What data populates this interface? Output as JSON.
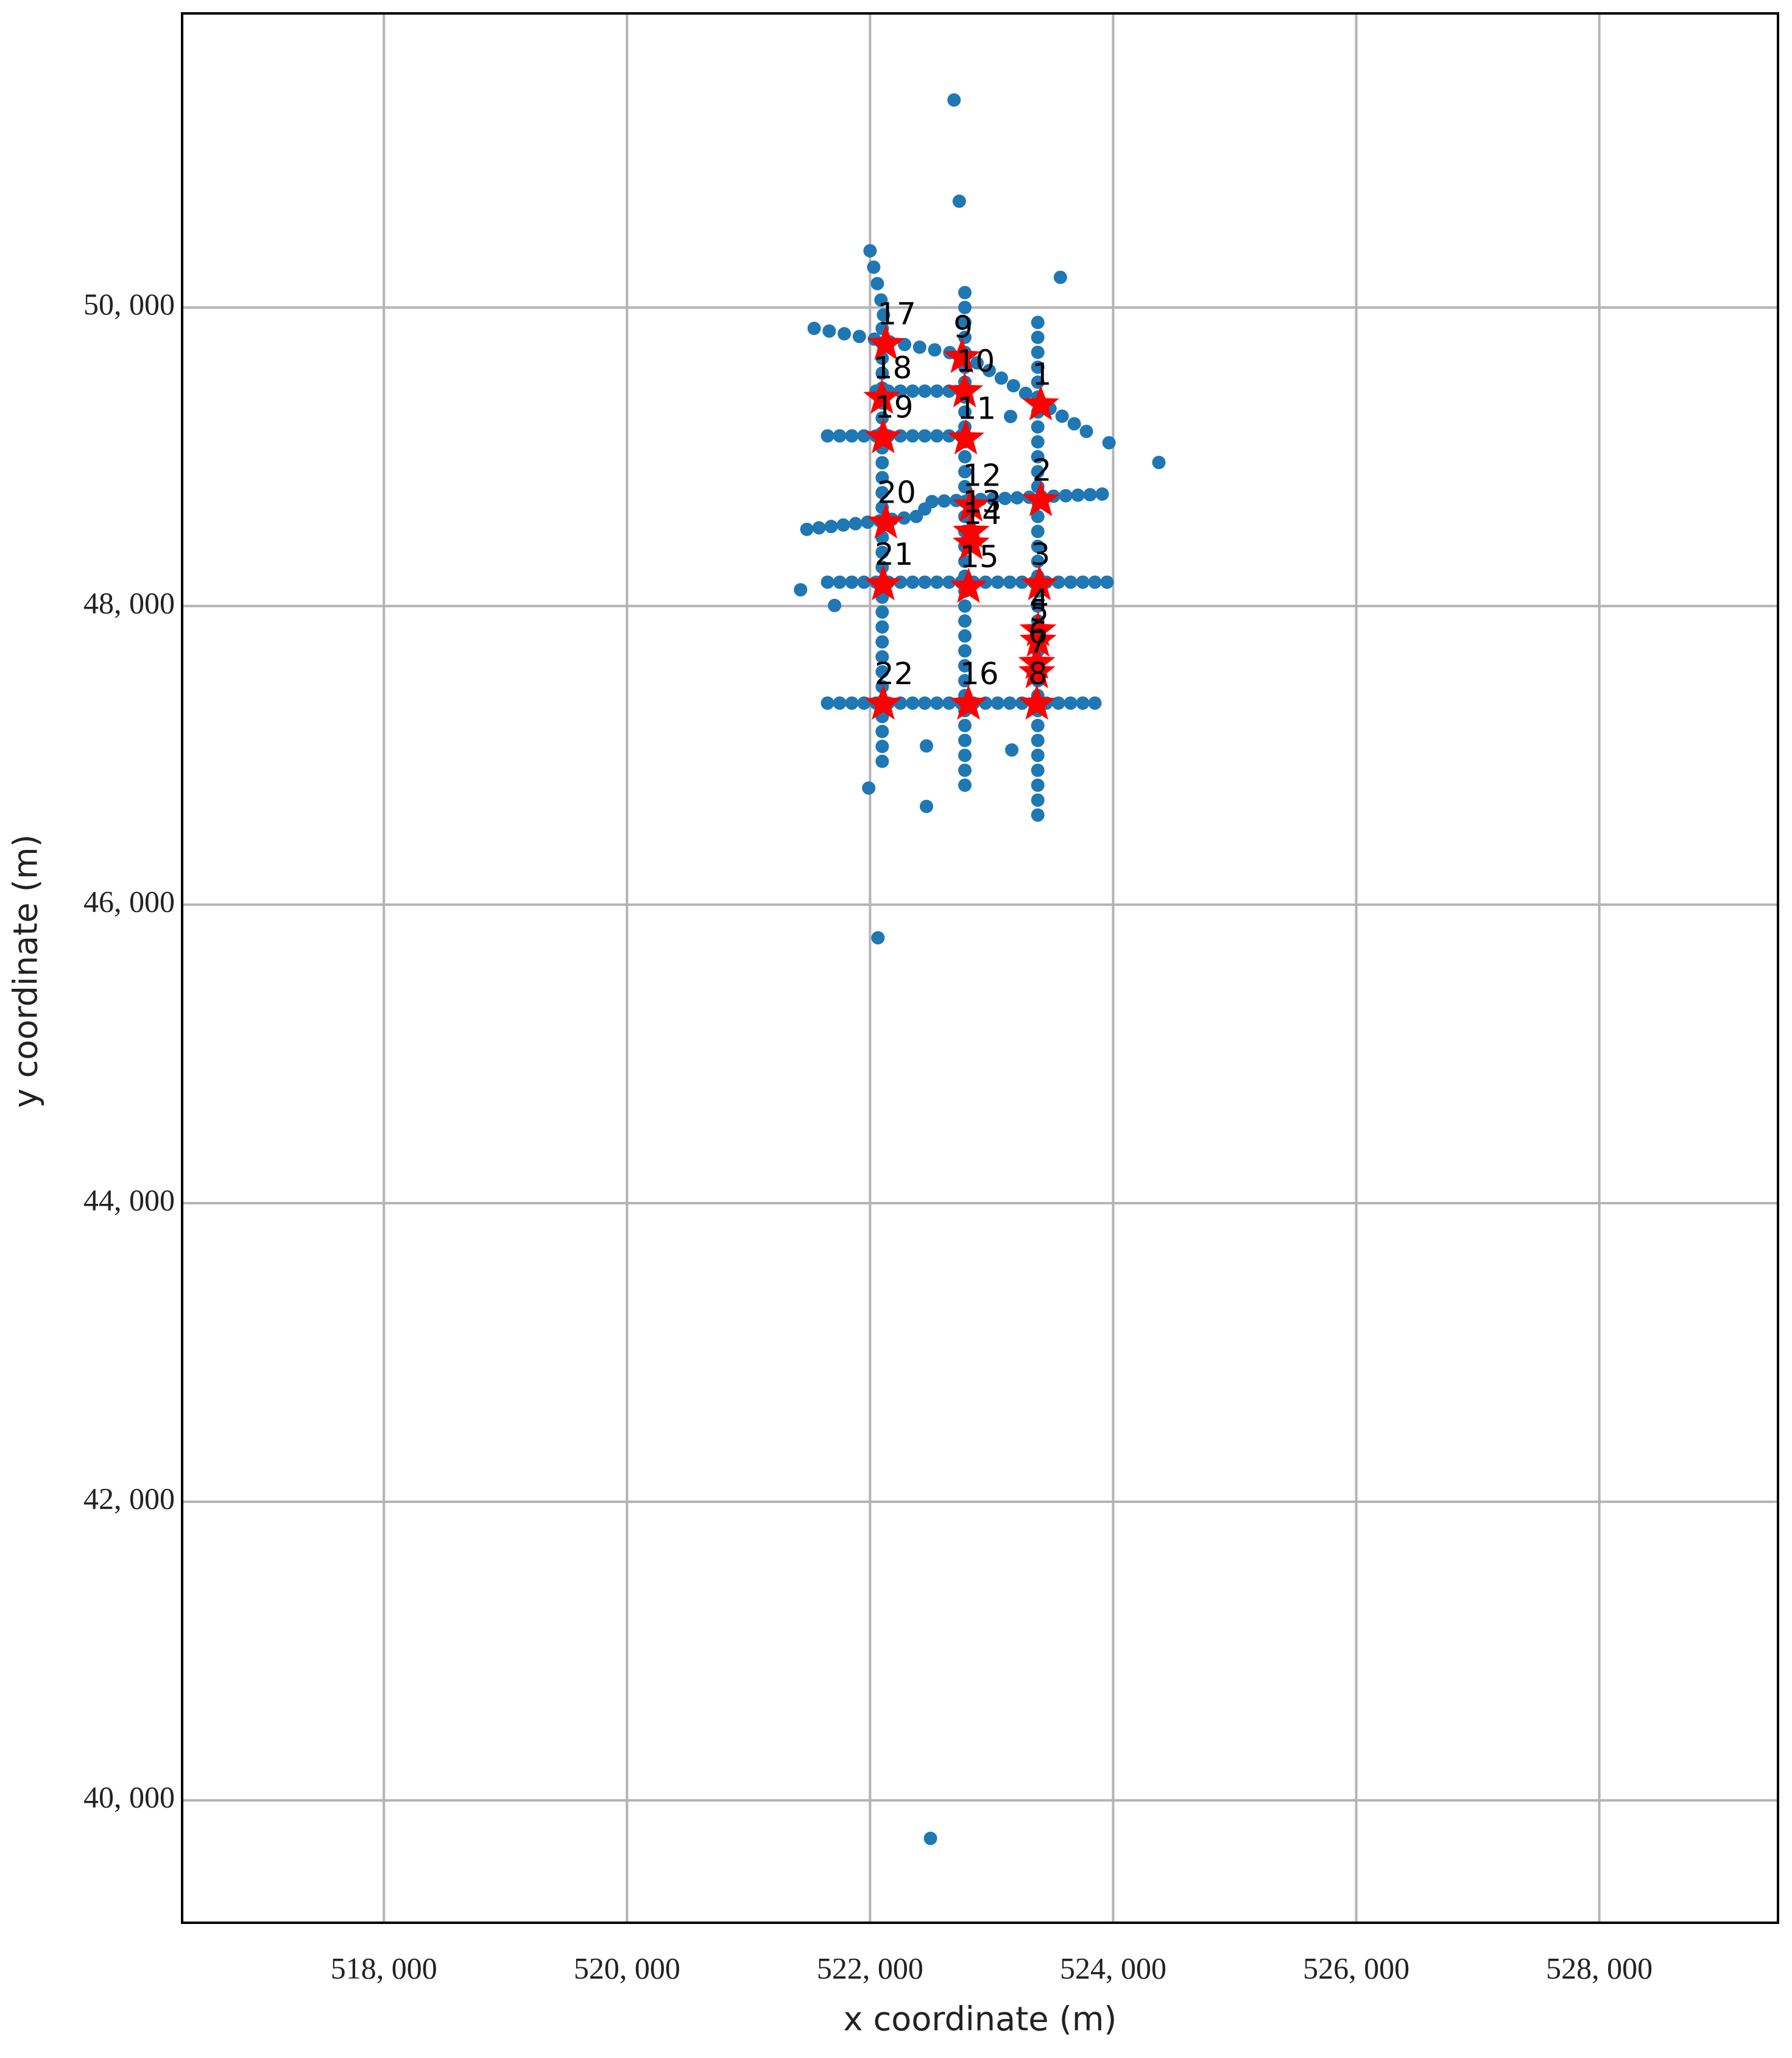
{
  "chart_data": {
    "type": "scatter",
    "xlabel": "x coordinate (m)",
    "ylabel": "y coordinate (m)",
    "xlim": [
      516340,
      529470
    ],
    "ylim": [
      39180,
      51970
    ],
    "xticks": [
      {
        "value": 518000,
        "label": "518, 000"
      },
      {
        "value": 520000,
        "label": "520, 000"
      },
      {
        "value": 522000,
        "label": "522, 000"
      },
      {
        "value": 524000,
        "label": "524, 000"
      },
      {
        "value": 526000,
        "label": "526, 000"
      },
      {
        "value": 528000,
        "label": "528, 000"
      }
    ],
    "yticks": [
      {
        "value": 40000,
        "label": "40, 000"
      },
      {
        "value": 42000,
        "label": "42, 000"
      },
      {
        "value": 44000,
        "label": "44, 000"
      },
      {
        "value": 46000,
        "label": "46, 000"
      },
      {
        "value": 48000,
        "label": "48, 000"
      },
      {
        "value": 50000,
        "label": "50, 000"
      }
    ],
    "grid": true,
    "series": [
      {
        "color": "#1f77b4",
        "marker": "circle",
        "x": [
          522100,
          522100,
          522100,
          522100,
          522100,
          522100,
          522100,
          522100,
          522100,
          522100,
          522100,
          522100,
          522100,
          522100,
          522100,
          522100,
          522100,
          522100,
          522100,
          522100,
          522100,
          522100,
          522100,
          522100,
          522100,
          522100,
          522100,
          522100,
          522100,
          522100,
          522780,
          522780,
          522780,
          522780,
          522780,
          522780,
          522780,
          522780,
          522780,
          522780,
          522780,
          522780,
          522780,
          522780,
          522780,
          522780,
          522780,
          522780,
          522780,
          522780,
          522780,
          522780,
          522780,
          522780,
          522780,
          522780,
          522780,
          522780,
          522780,
          522780,
          522780,
          522780,
          522780,
          522780,
          523380,
          523380,
          523380,
          523380,
          523380,
          523380,
          523380,
          523380,
          523380,
          523380,
          523380,
          523380,
          523380,
          523380,
          523380,
          523380,
          523380,
          523380,
          523380,
          523380,
          523380,
          523380,
          523380,
          523380,
          523380,
          523380,
          523380,
          523380,
          523380,
          523380,
          523380,
          523380,
          523380,
          523380,
          521540,
          521664,
          521788,
          521912,
          522036,
          522160,
          522284,
          522408,
          522532,
          522656,
          522780,
          522880,
          522980,
          523080,
          523180,
          523280,
          523380,
          523480,
          523580,
          523680,
          523780,
          522050,
          522150,
          522250,
          522350,
          522450,
          522550,
          522650,
          522750,
          521650,
          521750,
          521850,
          521950,
          522050,
          522150,
          522250,
          522350,
          522450,
          522550,
          522650,
          522750,
          521480,
          521580,
          521680,
          521780,
          521880,
          521980,
          522080,
          522180,
          522280,
          522380,
          522450,
          522510,
          522610,
          522710,
          522810,
          522910,
          523010,
          523110,
          523210,
          523310,
          523410,
          523510,
          523610,
          523710,
          523810,
          523910,
          521650,
          521750,
          521850,
          521950,
          522050,
          522150,
          522250,
          522350,
          522450,
          522550,
          522650,
          522750,
          522850,
          522950,
          523050,
          523150,
          523250,
          523350,
          523450,
          523550,
          523650,
          523750,
          523850,
          523950,
          521650,
          521750,
          521850,
          521950,
          522050,
          522150,
          522250,
          522350,
          522450,
          522550,
          522650,
          522750,
          522850,
          522950,
          523050,
          523150,
          523250,
          523350,
          523450,
          523550,
          523650,
          523750,
          523850,
          522000,
          522030,
          522060,
          522090,
          522110,
          522691,
          522734,
          523566,
          524376,
          522065,
          522497,
          521428,
          521708,
          521989,
          522464,
          523166,
          522464,
          523966,
          523156
        ],
        "y": [
          49860,
          49760,
          49660,
          49560,
          49460,
          49360,
          49260,
          49160,
          49060,
          48960,
          48860,
          48760,
          48660,
          48560,
          48460,
          48360,
          48260,
          48160,
          48060,
          47960,
          47860,
          47760,
          47660,
          47560,
          47460,
          47360,
          47260,
          47160,
          47060,
          46960,
          50100,
          50000,
          49900,
          49800,
          49700,
          49600,
          49500,
          49400,
          49300,
          49200,
          49100,
          49000,
          48900,
          48800,
          48700,
          48600,
          48500,
          48400,
          48300,
          48200,
          48100,
          48000,
          47900,
          47800,
          47700,
          47600,
          47500,
          47400,
          47300,
          47200,
          47100,
          47000,
          46900,
          46800,
          49900,
          49800,
          49700,
          49600,
          49500,
          49400,
          49300,
          49200,
          49100,
          49000,
          48900,
          48800,
          48700,
          48600,
          48500,
          48400,
          48300,
          48200,
          48100,
          48000,
          47900,
          47800,
          47700,
          47600,
          47500,
          47400,
          47300,
          47200,
          47100,
          47000,
          46900,
          46800,
          46700,
          46600,
          49860,
          49842,
          49824,
          49806,
          49788,
          49770,
          49752,
          49734,
          49716,
          49698,
          49680,
          49629,
          49578,
          49527,
          49476,
          49425,
          49374,
          49323,
          49272,
          49221,
          49170,
          49440,
          49440,
          49440,
          49440,
          49440,
          49440,
          49440,
          49440,
          49140,
          49140,
          49140,
          49140,
          49140,
          49140,
          49140,
          49140,
          49140,
          49140,
          49140,
          49140,
          48514,
          48524,
          48533,
          48543,
          48552,
          48562,
          48571,
          48581,
          48590,
          48600,
          48650,
          48700,
          48704,
          48707,
          48711,
          48714,
          48718,
          48721,
          48725,
          48729,
          48732,
          48736,
          48739,
          48743,
          48746,
          48750,
          48160,
          48160,
          48160,
          48160,
          48160,
          48160,
          48160,
          48160,
          48160,
          48160,
          48160,
          48160,
          48160,
          48160,
          48160,
          48160,
          48160,
          48160,
          48160,
          48160,
          48160,
          48160,
          48160,
          48160,
          47350,
          47350,
          47350,
          47350,
          47350,
          47350,
          47350,
          47350,
          47350,
          47350,
          47350,
          47350,
          47350,
          47350,
          47350,
          47350,
          47350,
          47350,
          47350,
          47350,
          47350,
          47350,
          47350,
          50380,
          50270,
          50160,
          50050,
          49950,
          51390,
          50712,
          50202,
          48962,
          45778,
          39745,
          48109,
          48004,
          46781,
          46658,
          47036,
          47063,
          49094,
          49270
        ]
      },
      {
        "color": "#ff0000",
        "marker": "star",
        "x": [
          523404,
          523404,
          523393,
          523382,
          523382,
          523372,
          523372,
          523372,
          522756,
          522778,
          522788,
          522832,
          522832,
          522832,
          522810,
          522810,
          522130,
          522097,
          522108,
          522130,
          522108,
          522108
        ],
        "y": [
          49349,
          48707,
          48144,
          47836,
          47766,
          47617,
          47555,
          47344,
          49666,
          49437,
          49121,
          48672,
          48496,
          48417,
          48127,
          47344,
          49754,
          49393,
          49129,
          48558,
          48144,
          47344
        ],
        "labels": [
          "1",
          "2",
          "3",
          "4",
          "5",
          "6",
          "7",
          "8",
          "9",
          "10",
          "11",
          "12",
          "13",
          "14",
          "15",
          "16",
          "17",
          "18",
          "19",
          "20",
          "21",
          "22"
        ]
      }
    ]
  }
}
